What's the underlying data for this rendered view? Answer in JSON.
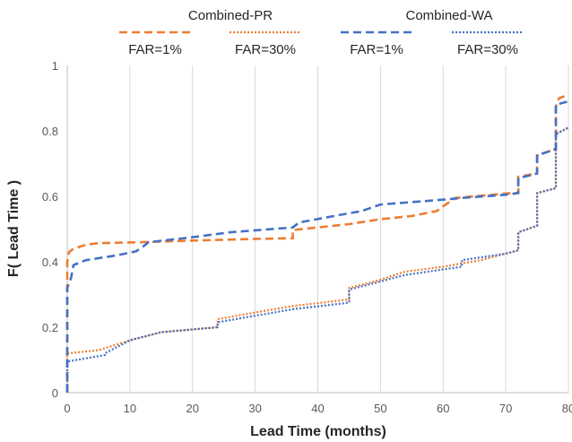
{
  "chart_data": {
    "type": "line",
    "xlabel": "Lead Time (months)",
    "ylabel": "F( Lead Time )",
    "xlim": [
      0,
      80
    ],
    "ylim": [
      0,
      1
    ],
    "x_ticks": [
      0,
      10,
      20,
      30,
      40,
      50,
      60,
      70,
      80
    ],
    "y_ticks": [
      0,
      0.2,
      0.4,
      0.6,
      0.8,
      1
    ],
    "y_tick_labels": [
      "0",
      "0.2",
      "0.4",
      "0.6",
      "0.8",
      "1"
    ],
    "grid": "vertical",
    "legend": {
      "placement": "top",
      "groups": [
        {
          "label": "Combined-PR",
          "items": [
            "FAR=1%",
            "FAR=30%"
          ]
        },
        {
          "label": "Combined-WA",
          "items": [
            "FAR=1%",
            "FAR=30%"
          ]
        }
      ]
    },
    "series": [
      {
        "group": "Combined-PR",
        "name": "FAR=1%",
        "color": "#ED7D31",
        "style": "dashed",
        "points": [
          [
            0,
            0.0
          ],
          [
            0,
            0.4
          ],
          [
            0.3,
            0.43
          ],
          [
            1,
            0.44
          ],
          [
            3,
            0.452
          ],
          [
            5,
            0.457
          ],
          [
            12,
            0.46
          ],
          [
            20,
            0.465
          ],
          [
            30,
            0.47
          ],
          [
            36,
            0.472
          ],
          [
            36,
            0.497
          ],
          [
            45,
            0.515
          ],
          [
            50,
            0.53
          ],
          [
            55,
            0.54
          ],
          [
            59,
            0.555
          ],
          [
            60,
            0.57
          ],
          [
            62,
            0.595
          ],
          [
            71,
            0.61
          ],
          [
            72,
            0.61
          ],
          [
            72,
            0.66
          ],
          [
            75,
            0.67
          ],
          [
            75,
            0.725
          ],
          [
            78,
            0.745
          ],
          [
            78,
            0.875
          ],
          [
            78.5,
            0.9
          ],
          [
            80,
            0.91
          ]
        ]
      },
      {
        "group": "Combined-PR",
        "name": "FAR=30%",
        "color": "#ED7D31",
        "style": "dotted",
        "points": [
          [
            0,
            0.0
          ],
          [
            0,
            0.12
          ],
          [
            5,
            0.13
          ],
          [
            10,
            0.16
          ],
          [
            15,
            0.185
          ],
          [
            24,
            0.2
          ],
          [
            24,
            0.225
          ],
          [
            30,
            0.245
          ],
          [
            36,
            0.265
          ],
          [
            45,
            0.285
          ],
          [
            45,
            0.32
          ],
          [
            50,
            0.345
          ],
          [
            54,
            0.37
          ],
          [
            60,
            0.385
          ],
          [
            66,
            0.405
          ],
          [
            72,
            0.435
          ],
          [
            72,
            0.49
          ],
          [
            75,
            0.51
          ],
          [
            75,
            0.61
          ],
          [
            78,
            0.625
          ],
          [
            78,
            0.79
          ],
          [
            80,
            0.81
          ]
        ]
      },
      {
        "group": "Combined-WA",
        "name": "FAR=1%",
        "color": "#4472C4",
        "style": "dashed",
        "points": [
          [
            0,
            0.0
          ],
          [
            0,
            0.32
          ],
          [
            0.6,
            0.35
          ],
          [
            1,
            0.39
          ],
          [
            3,
            0.405
          ],
          [
            8,
            0.42
          ],
          [
            11,
            0.432
          ],
          [
            12,
            0.445
          ],
          [
            13,
            0.46
          ],
          [
            20,
            0.475
          ],
          [
            26,
            0.49
          ],
          [
            36,
            0.505
          ],
          [
            37,
            0.52
          ],
          [
            44,
            0.545
          ],
          [
            47,
            0.555
          ],
          [
            50,
            0.575
          ],
          [
            60,
            0.59
          ],
          [
            63,
            0.595
          ],
          [
            70,
            0.605
          ],
          [
            72,
            0.61
          ],
          [
            72,
            0.655
          ],
          [
            75,
            0.67
          ],
          [
            75,
            0.725
          ],
          [
            78,
            0.745
          ],
          [
            78,
            0.88
          ],
          [
            80,
            0.89
          ]
        ]
      },
      {
        "group": "Combined-WA",
        "name": "FAR=30%",
        "color": "#4472C4",
        "style": "dotted",
        "points": [
          [
            0,
            0.0
          ],
          [
            0,
            0.095
          ],
          [
            6,
            0.115
          ],
          [
            6,
            0.12
          ],
          [
            10,
            0.16
          ],
          [
            15,
            0.185
          ],
          [
            24,
            0.2
          ],
          [
            24,
            0.215
          ],
          [
            30,
            0.235
          ],
          [
            36,
            0.255
          ],
          [
            45,
            0.275
          ],
          [
            45,
            0.315
          ],
          [
            50,
            0.34
          ],
          [
            54,
            0.36
          ],
          [
            63,
            0.385
          ],
          [
            63,
            0.405
          ],
          [
            70,
            0.425
          ],
          [
            72,
            0.435
          ],
          [
            72,
            0.49
          ],
          [
            75,
            0.51
          ],
          [
            75,
            0.61
          ],
          [
            78,
            0.625
          ],
          [
            78,
            0.79
          ],
          [
            80,
            0.81
          ]
        ]
      }
    ]
  }
}
